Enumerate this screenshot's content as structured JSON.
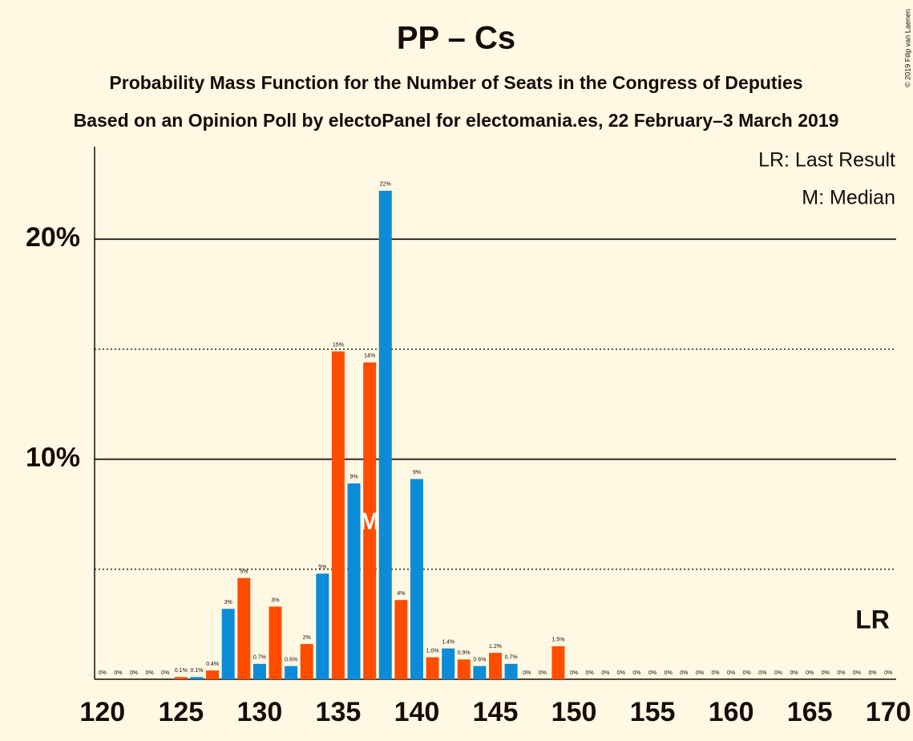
{
  "chart_data": {
    "type": "bar",
    "title": "PP – Cs",
    "subtitle": "Probability Mass Function for the Number of Seats in the Congress of Deputies",
    "subtitle2": "Based on an Opinion Poll by electoPanel for electomania.es, 22 February–3 March 2019",
    "copyright": "© 2019 Filip van Laenen",
    "legend_lr": "LR: Last Result",
    "legend_m": "M: Median",
    "median_label": "M",
    "lr_label": "LR",
    "median": 137,
    "last_result": 169,
    "colors": [
      "#0b8bd8",
      "#ff4d00"
    ],
    "x": [
      120,
      121,
      122,
      123,
      124,
      125,
      126,
      127,
      128,
      129,
      130,
      131,
      132,
      133,
      134,
      135,
      136,
      137,
      138,
      139,
      140,
      141,
      142,
      143,
      144,
      145,
      146,
      147,
      148,
      149,
      150,
      151,
      152,
      153,
      154,
      155,
      156,
      157,
      158,
      159,
      160,
      161,
      162,
      163,
      164,
      165,
      166,
      167,
      168,
      169,
      170
    ],
    "values": [
      0,
      0,
      0,
      0,
      0,
      0.1,
      0.1,
      0.4,
      3.2,
      4.6,
      0.7,
      3.3,
      0.6,
      1.6,
      4.8,
      14.9,
      8.9,
      14.4,
      22.2,
      3.6,
      9.1,
      1.0,
      1.4,
      0.9,
      0.6,
      1.2,
      0.7,
      0,
      0,
      1.5,
      0,
      0,
      0,
      0,
      0,
      0,
      0,
      0,
      0,
      0,
      0,
      0,
      0,
      0,
      0,
      0,
      0,
      0,
      0,
      0,
      0
    ],
    "value_labels": [
      "0%",
      "0%",
      "0%",
      "0%",
      "0%",
      "0.1%",
      "0.1%",
      "0.4%",
      "3%",
      "5%",
      "0.7%",
      "3%",
      "0.6%",
      "2%",
      "5%",
      "15%",
      "9%",
      "14%",
      "22%",
      "4%",
      "9%",
      "1.0%",
      "1.4%",
      "0.9%",
      "0.6%",
      "1.2%",
      "0.7%",
      "0%",
      "0%",
      "1.5%",
      "0%",
      "0%",
      "0%",
      "0%",
      "0%",
      "0%",
      "0%",
      "0%",
      "0%",
      "0%",
      "0%",
      "0%",
      "0%",
      "0%",
      "0%",
      "0%",
      "0%",
      "0%",
      "0%",
      "0%",
      "0%"
    ],
    "xlim": [
      119.5,
      170.5
    ],
    "xticks": [
      120,
      125,
      130,
      135,
      140,
      145,
      150,
      155,
      160,
      165,
      170
    ],
    "ylim": [
      0,
      24.2
    ],
    "yticks": [
      {
        "value": 10,
        "label": "10%"
      },
      {
        "value": 20,
        "label": "20%"
      }
    ],
    "minor_yticks": [
      5,
      15
    ],
    "grid": true
  }
}
